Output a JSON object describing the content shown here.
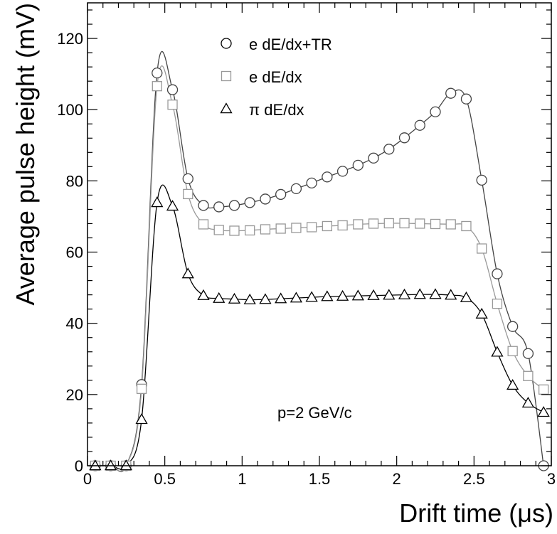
{
  "chart_data": {
    "type": "line",
    "title": "",
    "xlabel": "Drift time (μs)",
    "ylabel": "Average pulse height (mV)",
    "xlim": [
      0,
      3
    ],
    "ylim": [
      0,
      130
    ],
    "x_ticks": [
      0,
      0.5,
      1,
      1.5,
      2,
      2.5,
      3
    ],
    "x_tick_labels": [
      "0",
      "0.5",
      "1",
      "1.5",
      "2",
      "2.5",
      "3"
    ],
    "y_ticks": [
      0,
      20,
      40,
      60,
      80,
      100,
      120
    ],
    "y_tick_labels": [
      "0",
      "20",
      "40",
      "60",
      "80",
      "100",
      "120"
    ],
    "grid": false,
    "legend_position": "top-center",
    "annotation": "p=2 GeV/c",
    "series": [
      {
        "name": "e dE/dx+TR",
        "marker": "circle",
        "color": "#444444",
        "x": [
          0.05,
          0.15,
          0.25,
          0.35,
          0.45,
          0.55,
          0.65,
          0.75,
          0.85,
          0.95,
          1.05,
          1.15,
          1.25,
          1.35,
          1.45,
          1.55,
          1.65,
          1.75,
          1.85,
          1.95,
          2.05,
          2.15,
          2.25,
          2.35,
          2.45,
          2.55,
          2.65,
          2.75,
          2.85,
          2.95
        ],
        "y": [
          0,
          0,
          0,
          22.8,
          110.3,
          105.6,
          80.6,
          73.1,
          72.7,
          73.1,
          73.9,
          74.9,
          76.2,
          77.8,
          79.4,
          81.1,
          82.7,
          84.4,
          86.4,
          88.9,
          92.1,
          95.6,
          99.4,
          104.6,
          103.0,
          80.2,
          53.9,
          39.1,
          31.5,
          0
        ]
      },
      {
        "name": "e dE/dx",
        "marker": "square",
        "color": "#999999",
        "x": [
          0.05,
          0.15,
          0.25,
          0.35,
          0.45,
          0.55,
          0.65,
          0.75,
          0.85,
          0.95,
          1.05,
          1.15,
          1.25,
          1.35,
          1.45,
          1.55,
          1.65,
          1.75,
          1.85,
          1.95,
          2.05,
          2.15,
          2.25,
          2.35,
          2.45,
          2.55,
          2.65,
          2.75,
          2.85,
          2.95
        ],
        "y": [
          0,
          0,
          0,
          21.6,
          106.6,
          101.4,
          76.3,
          67.8,
          66.2,
          66.0,
          66.1,
          66.4,
          66.6,
          66.8,
          67.0,
          67.3,
          67.5,
          67.8,
          68.0,
          68.1,
          68.1,
          68.0,
          67.9,
          67.8,
          67.3,
          61.0,
          45.5,
          32.2,
          25.2,
          21.4
        ]
      },
      {
        "name": "π dE/dx",
        "marker": "triangle",
        "color": "#000000",
        "x": [
          0.05,
          0.15,
          0.25,
          0.35,
          0.45,
          0.55,
          0.65,
          0.75,
          0.85,
          0.95,
          1.05,
          1.15,
          1.25,
          1.35,
          1.45,
          1.55,
          1.65,
          1.75,
          1.85,
          1.95,
          2.05,
          2.15,
          2.25,
          2.35,
          2.45,
          2.55,
          2.65,
          2.75,
          2.85,
          2.95
        ],
        "y": [
          0,
          0,
          0,
          13.0,
          73.9,
          72.9,
          53.9,
          47.8,
          47.0,
          46.8,
          46.6,
          46.7,
          46.9,
          47.1,
          47.3,
          47.5,
          47.6,
          47.7,
          47.8,
          47.9,
          48.0,
          48.1,
          48.1,
          47.9,
          47.2,
          42.6,
          31.9,
          22.6,
          17.6,
          15.0
        ]
      }
    ]
  }
}
